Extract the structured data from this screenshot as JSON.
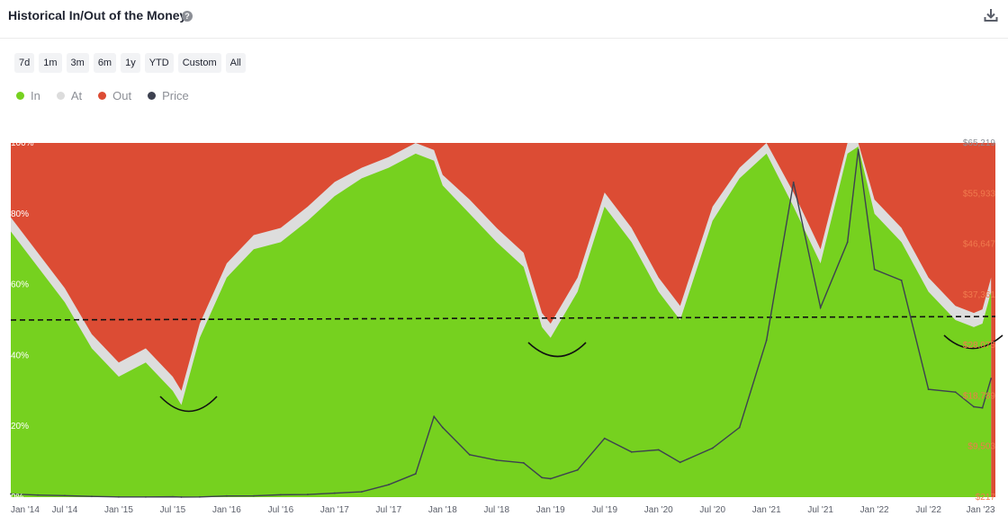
{
  "header": {
    "title": "Historical In/Out of the Money",
    "help_icon": "question-circle-icon",
    "download_icon": "download-icon"
  },
  "ranges": [
    "7d",
    "1m",
    "3m",
    "6m",
    "1y",
    "YTD",
    "Custom",
    "All"
  ],
  "legend": [
    {
      "label": "In",
      "color": "#76d11f"
    },
    {
      "label": "At",
      "color": "#dcdcdc"
    },
    {
      "label": "Out",
      "color": "#dc4c34"
    },
    {
      "label": "Price",
      "color": "#3d4150"
    }
  ],
  "chart_data": {
    "type": "area",
    "stacked_percent": true,
    "x_tick_labels": [
      "Jan '14",
      "Jul '14",
      "Jan '15",
      "Jul '15",
      "Jan '16",
      "Jul '16",
      "Jan '17",
      "Jul '17",
      "Jan '18",
      "Jul '18",
      "Jan '19",
      "Jul '19",
      "Jan '20",
      "Jul '20",
      "Jan '21",
      "Jul '21",
      "Jan '22",
      "Jul '22",
      "Jan '23"
    ],
    "y_left_ticks": [
      "0%",
      "20%",
      "40%",
      "60%",
      "80%",
      "100%"
    ],
    "y_right_ticks": [
      "$217",
      "$9,503",
      "$18,789",
      "$28,075",
      "$37,361",
      "$46,647",
      "$55,933",
      "$65,219"
    ],
    "ylim_left": [
      0,
      100
    ],
    "ylim_right": [
      217,
      65219
    ],
    "x": [
      2014.0,
      2014.25,
      2014.5,
      2014.75,
      2015.0,
      2015.25,
      2015.5,
      2015.58,
      2015.75,
      2016.0,
      2016.25,
      2016.5,
      2016.75,
      2017.0,
      2017.25,
      2017.5,
      2017.75,
      2017.92,
      2018.0,
      2018.25,
      2018.5,
      2018.75,
      2018.92,
      2019.0,
      2019.25,
      2019.5,
      2019.75,
      2020.0,
      2020.2,
      2020.5,
      2020.75,
      2021.0,
      2021.25,
      2021.5,
      2021.75,
      2021.85,
      2022.0,
      2022.25,
      2022.5,
      2022.75,
      2022.92,
      2023.0,
      2023.08
    ],
    "series": [
      {
        "name": "In",
        "values": [
          75,
          65,
          55,
          42,
          34,
          38,
          30,
          26,
          45,
          62,
          70,
          72,
          78,
          85,
          90,
          93,
          97,
          95,
          88,
          80,
          72,
          65,
          48,
          45,
          58,
          82,
          72,
          58,
          50,
          78,
          90,
          97,
          82,
          66,
          97,
          99,
          80,
          72,
          58,
          50,
          48,
          49,
          58
        ]
      },
      {
        "name": "At",
        "values": [
          4,
          4,
          4,
          4,
          4,
          4,
          4,
          4,
          4,
          4,
          4,
          4,
          4,
          4,
          3,
          3,
          3,
          3,
          3,
          4,
          4,
          4,
          4,
          4,
          4,
          4,
          4,
          4,
          4,
          4,
          3,
          3,
          4,
          4,
          3,
          1,
          4,
          4,
          4,
          4,
          4,
          4,
          4
        ]
      },
      {
        "name": "Out",
        "values": [
          21,
          31,
          41,
          54,
          62,
          58,
          66,
          70,
          51,
          34,
          26,
          24,
          18,
          11,
          7,
          4,
          0,
          2,
          9,
          16,
          24,
          31,
          48,
          51,
          38,
          14,
          24,
          38,
          46,
          18,
          7,
          0,
          14,
          30,
          0,
          0,
          16,
          24,
          38,
          46,
          48,
          47,
          38
        ]
      },
      {
        "name": "Price",
        "values": [
          800,
          600,
          500,
          350,
          250,
          240,
          280,
          230,
          250,
          430,
          450,
          650,
          700,
          950,
          1200,
          2500,
          4500,
          15000,
          13000,
          8000,
          7000,
          6500,
          3800,
          3600,
          5200,
          11000,
          8500,
          8900,
          6600,
          9200,
          13000,
          29000,
          58000,
          35000,
          47000,
          64000,
          42000,
          40000,
          20000,
          19500,
          16800,
          16600,
          22000
        ]
      }
    ]
  }
}
